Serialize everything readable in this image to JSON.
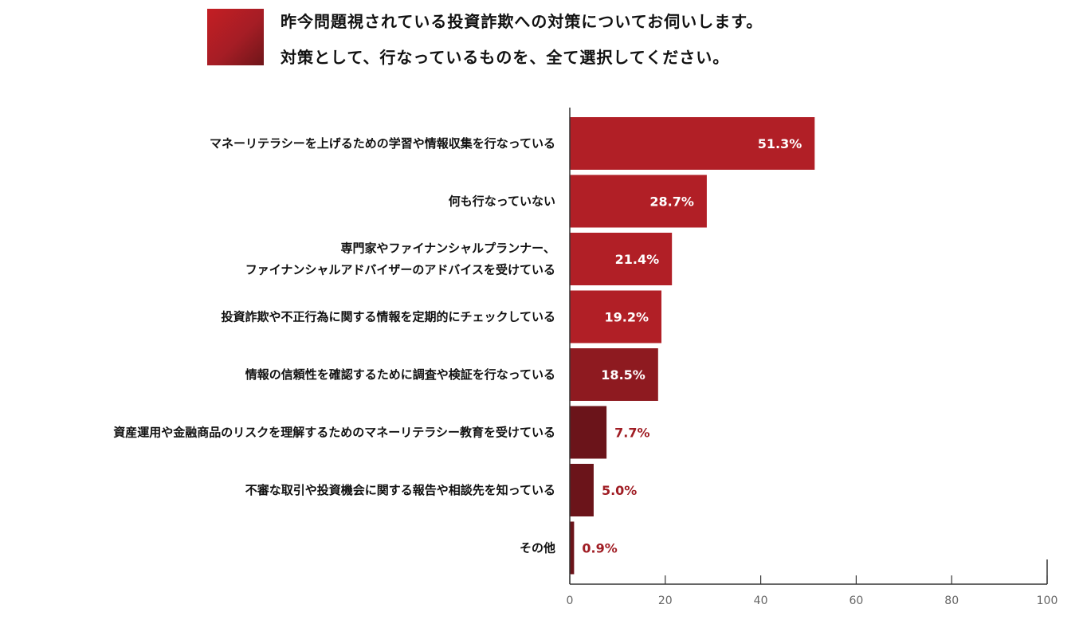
{
  "title_lines": [
    "昨今問題視されている投資詐欺への対策についてお伺いします。",
    "対策として、行なっているものを、全て選択してください。"
  ],
  "colors": {
    "bar_strong": "#b11f26",
    "bar_mid": "#8e1a20",
    "bar_dark": "#6b141a",
    "label_outside": "#a01d24",
    "label_inside": "#ffffff",
    "axis": "#333333"
  },
  "chart_data": {
    "type": "bar",
    "orientation": "horizontal",
    "categories": [
      [
        "マネーリテラシーを上げるための学習や情報収集を行なっている"
      ],
      [
        "何も行なっていない"
      ],
      [
        "専門家やファイナンシャルプランナー、",
        "ファイナンシャルアドバイザーのアドバイスを受けている"
      ],
      [
        "投資詐欺や不正行為に関する情報を定期的にチェックしている"
      ],
      [
        "情報の信頼性を確認するために調査や検証を行なっている"
      ],
      [
        "資産運用や金融商品のリスクを理解するためのマネーリテラシー教育を受けている"
      ],
      [
        "不審な取引や投資機会に関する報告や相談先を知っている"
      ],
      [
        "その他"
      ]
    ],
    "values": [
      51.3,
      28.7,
      21.4,
      19.2,
      18.5,
      7.7,
      5.0,
      0.9
    ],
    "value_labels": [
      "51.3%",
      "28.7%",
      "21.4%",
      "19.2%",
      "18.5%",
      "7.7%",
      "5.0%",
      "0.9%"
    ],
    "xlim": [
      0,
      100
    ],
    "x_ticks": [
      0,
      20,
      40,
      60,
      80,
      100
    ],
    "x_tick_labels": [
      "0",
      "20",
      "40",
      "60",
      "80",
      "100"
    ],
    "grid": false,
    "legend": "none"
  }
}
